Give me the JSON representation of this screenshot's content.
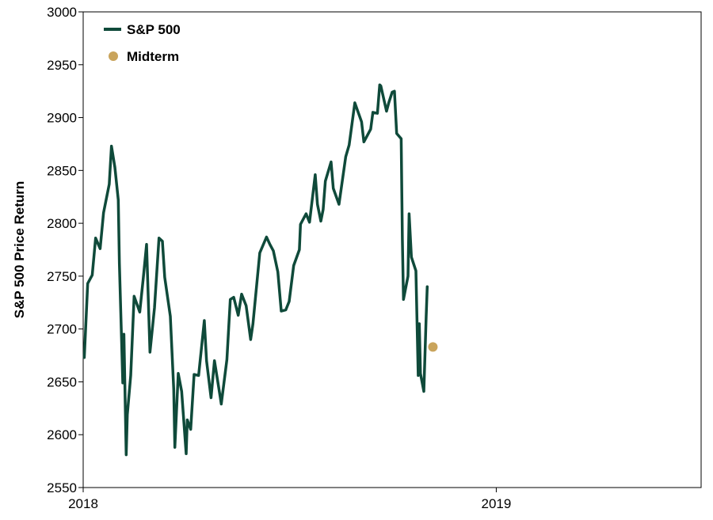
{
  "chart_data": {
    "type": "line",
    "title": "",
    "xlabel": "",
    "ylabel": "S&P 500 Price Return",
    "xlim": [
      "2018-01-01",
      "2019-07-01"
    ],
    "ylim": [
      2550,
      3000
    ],
    "x_ticks": [
      "2018-01-01",
      "2019-01-01"
    ],
    "x_tick_labels": [
      "2018",
      "2019"
    ],
    "y_ticks": [
      2550,
      2600,
      2650,
      2700,
      2750,
      2800,
      2850,
      2900,
      2950,
      3000
    ],
    "y_tick_labels": [
      "2550",
      "2600",
      "2650",
      "2700",
      "2750",
      "2800",
      "2850",
      "2900",
      "2950",
      "3000"
    ],
    "grid": false,
    "legend_position": "top-left",
    "series": [
      {
        "name": "S&P 500",
        "kind": "line",
        "color": "#0f4a3a",
        "x": [
          "2018-01-02",
          "2018-01-05",
          "2018-01-09",
          "2018-01-12",
          "2018-01-16",
          "2018-01-19",
          "2018-01-24",
          "2018-01-26",
          "2018-01-29",
          "2018-02-01",
          "2018-02-02",
          "2018-02-05",
          "2018-02-06",
          "2018-02-08",
          "2018-02-09",
          "2018-02-12",
          "2018-02-15",
          "2018-02-20",
          "2018-02-23",
          "2018-02-26",
          "2018-03-01",
          "2018-03-05",
          "2018-03-09",
          "2018-03-12",
          "2018-03-14",
          "2018-03-19",
          "2018-03-22",
          "2018-03-23",
          "2018-03-26",
          "2018-03-29",
          "2018-04-02",
          "2018-04-03",
          "2018-04-06",
          "2018-04-09",
          "2018-04-13",
          "2018-04-18",
          "2018-04-20",
          "2018-04-24",
          "2018-04-27",
          "2018-05-02",
          "2018-05-03",
          "2018-05-08",
          "2018-05-11",
          "2018-05-14",
          "2018-05-18",
          "2018-05-21",
          "2018-05-25",
          "2018-05-29",
          "2018-05-31",
          "2018-06-06",
          "2018-06-12",
          "2018-06-15",
          "2018-06-18",
          "2018-06-22",
          "2018-06-25",
          "2018-06-29",
          "2018-07-02",
          "2018-07-06",
          "2018-07-11",
          "2018-07-12",
          "2018-07-17",
          "2018-07-20",
          "2018-07-25",
          "2018-07-27",
          "2018-07-30",
          "2018-08-01",
          "2018-08-03",
          "2018-08-08",
          "2018-08-10",
          "2018-08-15",
          "2018-08-21",
          "2018-08-24",
          "2018-08-29",
          "2018-09-04",
          "2018-09-06",
          "2018-09-12",
          "2018-09-14",
          "2018-09-18",
          "2018-09-20",
          "2018-09-21",
          "2018-09-26",
          "2018-09-28",
          "2018-10-01",
          "2018-10-03",
          "2018-10-05",
          "2018-10-09",
          "2018-10-10",
          "2018-10-11",
          "2018-10-15",
          "2018-10-16",
          "2018-10-18",
          "2018-10-22",
          "2018-10-24",
          "2018-10-25",
          "2018-10-26",
          "2018-10-29",
          "2018-10-31",
          "2018-11-01"
        ],
        "y": [
          2673,
          2743,
          2751,
          2786,
          2776,
          2810,
          2837,
          2873,
          2853,
          2822,
          2762,
          2649,
          2695,
          2581,
          2619,
          2656,
          2731,
          2716,
          2747,
          2780,
          2678,
          2720,
          2786,
          2783,
          2749,
          2712,
          2643,
          2588,
          2658,
          2641,
          2582,
          2614,
          2605,
          2657,
          2656,
          2708,
          2670,
          2635,
          2670,
          2636,
          2629,
          2671,
          2728,
          2730,
          2713,
          2733,
          2722,
          2690,
          2705,
          2772,
          2787,
          2780,
          2774,
          2754,
          2717,
          2718,
          2726,
          2760,
          2775,
          2799,
          2809,
          2801,
          2846,
          2818,
          2802,
          2813,
          2840,
          2858,
          2833,
          2818,
          2863,
          2874,
          2914,
          2896,
          2877,
          2889,
          2905,
          2904,
          2931,
          2930,
          2906,
          2914,
          2924,
          2925,
          2885,
          2880,
          2785,
          2728,
          2750,
          2809,
          2768,
          2755,
          2656,
          2705,
          2658,
          2641,
          2711,
          2740
        ]
      },
      {
        "name": "Midterm",
        "kind": "point",
        "color": "#c9a45c",
        "x": [
          "2018-11-06"
        ],
        "y": [
          2683
        ]
      }
    ]
  }
}
